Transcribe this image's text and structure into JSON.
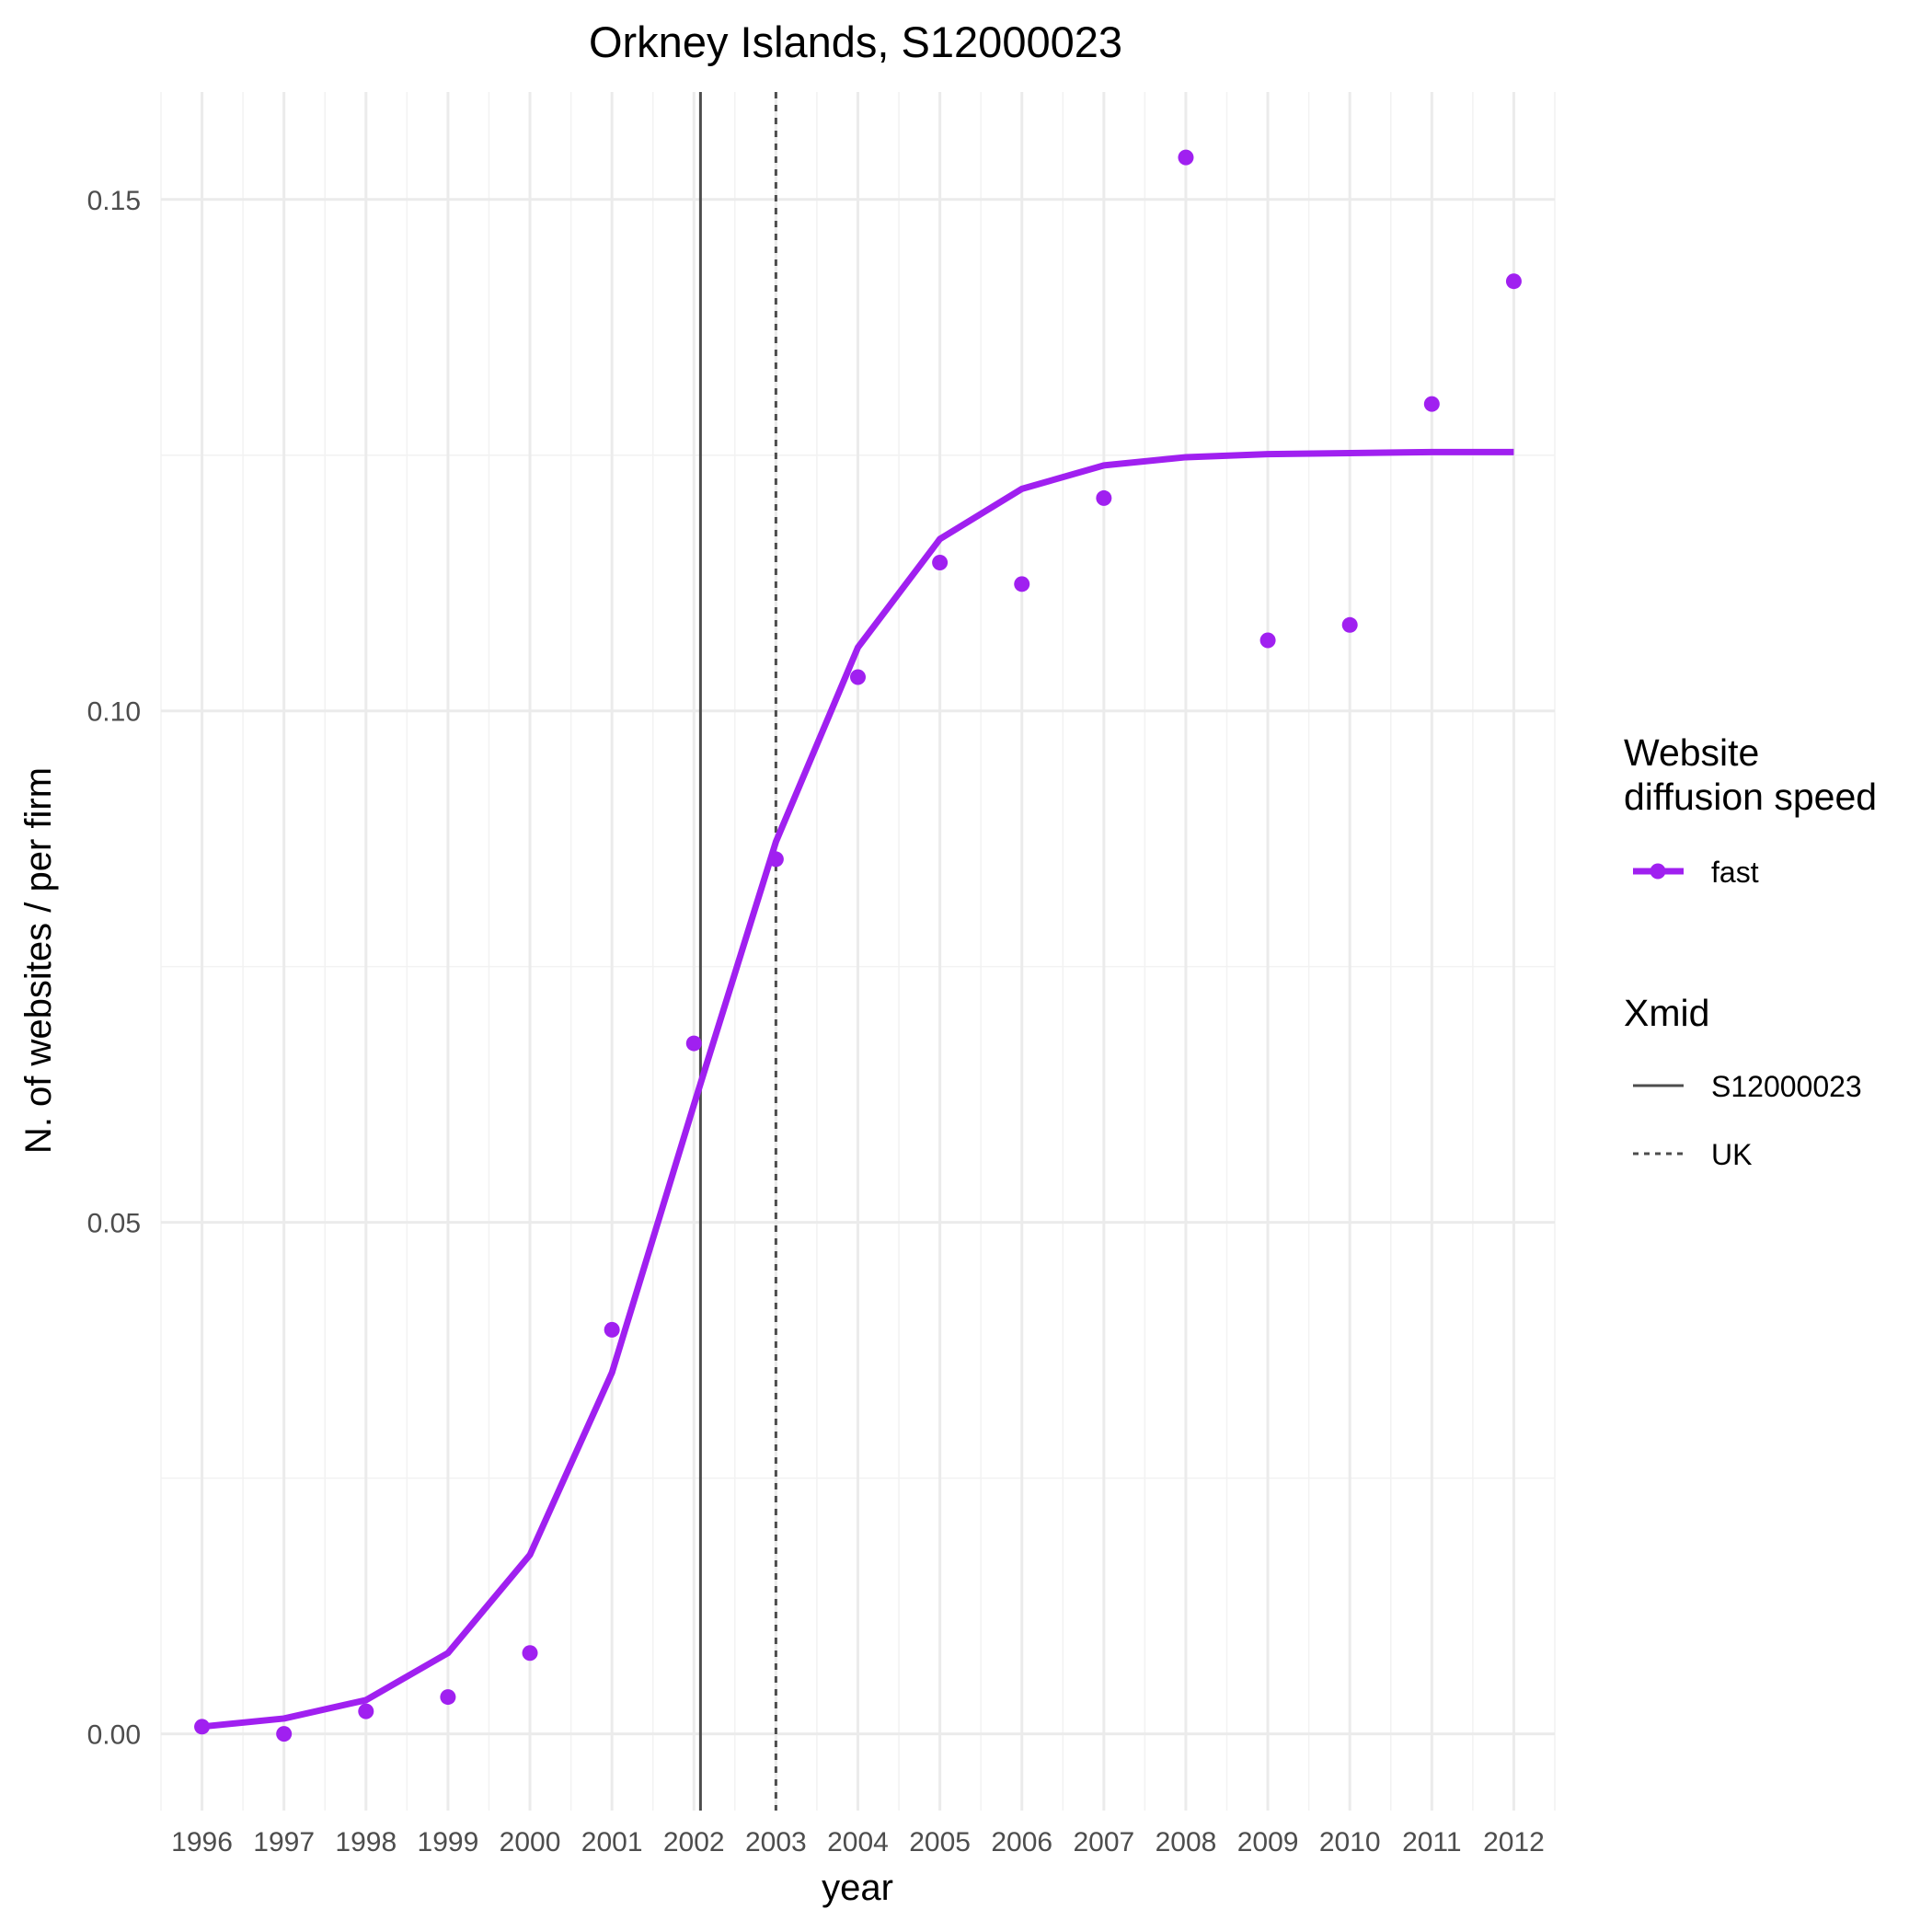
{
  "chart_data": {
    "type": "line",
    "title": "Orkney Islands, S12000023",
    "xlabel": "year",
    "ylabel": "N. of websites / per firm",
    "x_ticks": [
      1996,
      1997,
      1998,
      1999,
      2000,
      2001,
      2002,
      2003,
      2004,
      2005,
      2006,
      2007,
      2008,
      2009,
      2010,
      2011,
      2012
    ],
    "x_tick_labels": [
      "1996",
      "1997",
      "1998",
      "1999",
      "2000",
      "2001",
      "2002",
      "2003",
      "2004",
      "2005",
      "2006",
      "2007",
      "2008",
      "2009",
      "2010",
      "2011",
      "2012"
    ],
    "y_ticks": [
      0.0,
      0.05,
      0.1,
      0.15
    ],
    "y_tick_labels": [
      "0.00",
      "0.05",
      "0.10",
      "0.15"
    ],
    "xlim": [
      1995.5,
      2012.5
    ],
    "ylim": [
      -0.0075,
      0.1605
    ],
    "grid": true,
    "legend_position": "right",
    "series": [
      {
        "name": "fast",
        "color": "#a020f0",
        "points": {
          "x": [
            1996,
            1997,
            1998,
            1999,
            2000,
            2001,
            2002,
            2003,
            2004,
            2005,
            2006,
            2007,
            2008,
            2009,
            2010,
            2011,
            2012
          ],
          "y": [
            0.0007,
            0.0,
            0.0022,
            0.0036,
            0.0079,
            0.0395,
            0.0675,
            0.0855,
            0.1033,
            0.1145,
            0.1124,
            0.1208,
            0.1541,
            0.1069,
            0.1084,
            0.13,
            0.142
          ]
        },
        "fit": {
          "x": [
            1996,
            1997,
            1998,
            1999,
            2000,
            2001,
            2002,
            2003,
            2004,
            2005,
            2006,
            2007,
            2008,
            2009,
            2010,
            2011,
            2012
          ],
          "y": [
            0.0007,
            0.0015,
            0.0033,
            0.0079,
            0.0175,
            0.0353,
            0.0615,
            0.0872,
            0.1062,
            0.1168,
            0.1217,
            0.124,
            0.1248,
            0.1251,
            0.1252,
            0.1253,
            0.1253
          ]
        }
      }
    ],
    "vlines": [
      {
        "name": "S12000023",
        "x": 2002.08,
        "style": "solid",
        "color": "#4d4d4d"
      },
      {
        "name": "UK",
        "x": 2003.0,
        "style": "dotted",
        "color": "#4d4d4d"
      }
    ],
    "legend": {
      "speed_title_line1": "Website",
      "speed_title_line2": "diffusion speed",
      "speed_item": "fast",
      "xmid_title": "Xmid",
      "xmid_items": [
        "S12000023",
        "UK"
      ]
    }
  }
}
